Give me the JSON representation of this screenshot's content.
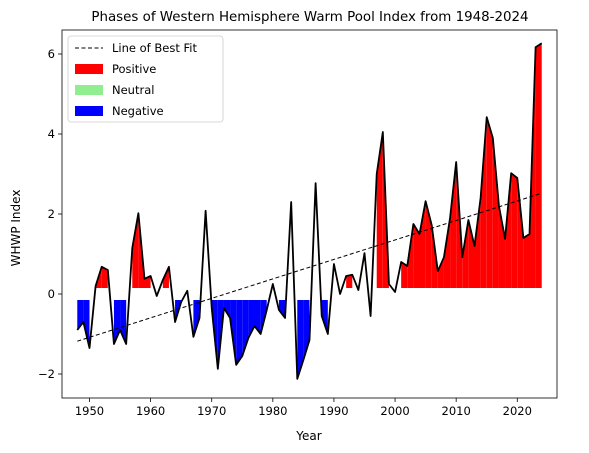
{
  "chart_data": {
    "type": "line",
    "title": "Phases of Western Hemisphere Warm Pool Index from 1948-2024",
    "xlabel": "Year",
    "ylabel": "WHWP Index",
    "xlim": [
      1945.5,
      2026.5
    ],
    "ylim": [
      -2.6,
      6.6
    ],
    "xticks": [
      1950,
      1960,
      1970,
      1980,
      1990,
      2000,
      2010,
      2020
    ],
    "yticks": [
      -2,
      0,
      2,
      4,
      6
    ],
    "grid": false,
    "legend_position": "top-left",
    "legend": [
      {
        "label": "Line of Best Fit",
        "kind": "dashed-line",
        "color": "#000000"
      },
      {
        "label": "Positive",
        "kind": "patch",
        "color": "#ff0000"
      },
      {
        "label": "Neutral",
        "kind": "patch",
        "color": "#90ee90"
      },
      {
        "label": "Negative",
        "kind": "patch",
        "color": "#0000ff"
      }
    ],
    "phase_thresholds": {
      "positive_above": 0.15,
      "negative_below": -0.15
    },
    "series": [
      {
        "name": "WHWP Index",
        "color": "#000000",
        "x": [
          1948,
          1949,
          1950,
          1951,
          1952,
          1953,
          1954,
          1955,
          1956,
          1957,
          1958,
          1959,
          1960,
          1961,
          1962,
          1963,
          1964,
          1965,
          1966,
          1967,
          1968,
          1969,
          1970,
          1971,
          1972,
          1973,
          1974,
          1975,
          1976,
          1977,
          1978,
          1979,
          1980,
          1981,
          1982,
          1983,
          1984,
          1985,
          1986,
          1987,
          1988,
          1989,
          1990,
          1991,
          1992,
          1993,
          1994,
          1995,
          1996,
          1997,
          1998,
          1999,
          2000,
          2001,
          2002,
          2003,
          2004,
          2005,
          2006,
          2007,
          2008,
          2009,
          2010,
          2011,
          2012,
          2013,
          2014,
          2015,
          2016,
          2017,
          2018,
          2019,
          2020,
          2021,
          2022,
          2023,
          2024
        ],
        "y": [
          -0.9,
          -0.7,
          -1.35,
          0.2,
          0.68,
          0.6,
          -1.25,
          -0.9,
          -1.25,
          1.15,
          2.02,
          0.38,
          0.45,
          -0.05,
          0.35,
          0.68,
          -0.7,
          -0.2,
          0.08,
          -1.07,
          -0.6,
          2.08,
          -0.35,
          -1.87,
          -0.35,
          -0.6,
          -1.77,
          -1.55,
          -1.1,
          -0.8,
          -1.0,
          -0.4,
          0.25,
          -0.4,
          -0.6,
          2.3,
          -2.12,
          -1.65,
          -1.15,
          2.77,
          -0.55,
          -1.0,
          0.75,
          0.0,
          0.45,
          0.48,
          0.1,
          1.02,
          -0.55,
          3.0,
          4.05,
          0.25,
          0.05,
          0.8,
          0.7,
          1.75,
          1.5,
          2.32,
          1.72,
          0.57,
          0.92,
          1.9,
          3.3,
          0.92,
          1.85,
          1.2,
          2.4,
          4.42,
          3.9,
          2.2,
          1.38,
          3.02,
          2.9,
          1.4,
          1.5,
          6.17,
          6.27
        ]
      },
      {
        "name": "Line of Best Fit",
        "color": "#000000",
        "x": [
          1948,
          2024
        ],
        "y": [
          -1.18,
          2.52
        ]
      }
    ]
  }
}
